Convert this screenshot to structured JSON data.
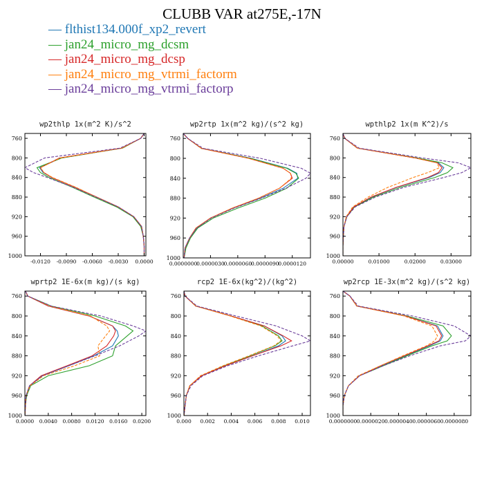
{
  "title": "CLUBB VAR at275E,-17N",
  "legend": [
    {
      "label": "flthist134.000f_xp2_revert",
      "color": "#1f77b4",
      "dash": "solid"
    },
    {
      "label": "jan24_micro_mg_dcsm",
      "color": "#2ca02c",
      "dash": "solid"
    },
    {
      "label": "jan24_micro_mg_dcsp",
      "color": "#d62728",
      "dash": "solid"
    },
    {
      "label": "jan24_micro_mg_vtrmi_factorm",
      "color": "#ff7f0e",
      "dash": "dashed"
    },
    {
      "label": "jan24_micro_mg_vtrmi_factorp",
      "color": "#6a3d9a",
      "dash": "dashed"
    }
  ],
  "legend_marker": "—",
  "chart_data": [
    {
      "type": "line",
      "title": "wp2thlp  1x(m^2 K)/s^2",
      "xlim": [
        -0.0138,
        0.0002
      ],
      "ylim": [
        1000,
        750
      ],
      "xticks": [
        -0.012,
        -0.009,
        -0.006,
        -0.003,
        0.0
      ],
      "xtick_labels": [
        "-0.0120",
        "-0.0090",
        "-0.0060",
        "-0.0030",
        "0.0000"
      ],
      "yticks": [
        760,
        800,
        840,
        880,
        920,
        960,
        1000
      ],
      "y": [
        750,
        760,
        780,
        800,
        820,
        830,
        840,
        860,
        880,
        900,
        920,
        940,
        960,
        980,
        1000
      ],
      "series": [
        {
          "name": "flthist134.000f_xp2_revert",
          "values": [
            0.0,
            -0.0004,
            -0.0026,
            -0.0096,
            -0.0121,
            -0.0117,
            -0.0107,
            -0.008,
            -0.0055,
            -0.003,
            -0.0012,
            -0.0003,
            -0.0001,
            0.0,
            0.0
          ]
        },
        {
          "name": "jan24_micro_mg_dcsm",
          "values": [
            0.0,
            -0.0004,
            -0.0025,
            -0.0095,
            -0.0124,
            -0.012,
            -0.011,
            -0.0083,
            -0.0058,
            -0.0032,
            -0.0013,
            -0.0004,
            -0.0001,
            0.0,
            0.0
          ]
        },
        {
          "name": "jan24_micro_mg_dcsp",
          "values": [
            0.0,
            -0.0004,
            -0.0026,
            -0.0098,
            -0.012,
            -0.0116,
            -0.0107,
            -0.008,
            -0.0055,
            -0.003,
            -0.0012,
            -0.0003,
            -0.0001,
            0.0,
            0.0
          ]
        },
        {
          "name": "jan24_micro_mg_vtrmi_factorm",
          "values": [
            0.0,
            -0.0004,
            -0.0026,
            -0.0097,
            -0.012,
            -0.0116,
            -0.0106,
            -0.0079,
            -0.0055,
            -0.003,
            -0.0012,
            -0.0003,
            -0.0001,
            0.0,
            0.0
          ]
        },
        {
          "name": "jan24_micro_mg_vtrmi_factorp",
          "values": [
            0.0,
            -0.0004,
            -0.0028,
            -0.0115,
            -0.0138,
            -0.0128,
            -0.0112,
            -0.0082,
            -0.0056,
            -0.003,
            -0.0012,
            -0.0003,
            -0.0001,
            0.0,
            0.0
          ]
        }
      ]
    },
    {
      "type": "line",
      "title": "wp2rtp  1x(m^2 kg)/(s^2 kg)",
      "xlim": [
        0.0,
        1.4e-05
      ],
      "ylim": [
        1000,
        750
      ],
      "xticks": [
        0.0,
        3e-06,
        6e-06,
        9e-06,
        1.2e-05
      ],
      "xtick_labels": [
        "0.0000000",
        "0.0000030",
        "0.0000060",
        "0.0000090",
        "0.0000120"
      ],
      "yticks": [
        760,
        800,
        840,
        880,
        920,
        960,
        1000
      ],
      "y": [
        750,
        760,
        780,
        800,
        820,
        830,
        840,
        860,
        880,
        900,
        920,
        940,
        960,
        980,
        1000
      ],
      "series": [
        {
          "name": "flthist134.000f_xp2_revert",
          "values": [
            0.0,
            5e-07,
            2e-06,
            7.5e-06,
            1.15e-05,
            1.25e-05,
            1.26e-05,
            1.1e-05,
            8.5e-06,
            5.5e-06,
            3e-06,
            1.5e-06,
            7e-07,
            2e-07,
            1e-07
          ]
        },
        {
          "name": "jan24_micro_mg_dcsm",
          "values": [
            0.0,
            5e-07,
            2e-06,
            7.4e-06,
            1.14e-05,
            1.24e-05,
            1.27e-05,
            1.14e-05,
            9e-06,
            6e-06,
            3.3e-06,
            1.6e-06,
            8e-07,
            3e-07,
            1e-07
          ]
        },
        {
          "name": "jan24_micro_mg_dcsp",
          "values": [
            0.0,
            5e-07,
            2e-06,
            7.2e-06,
            1.1e-05,
            1.18e-05,
            1.2e-05,
            1.06e-05,
            8.3e-06,
            5.4e-06,
            3e-06,
            1.4e-06,
            7e-07,
            2e-07,
            1e-07
          ]
        },
        {
          "name": "jan24_micro_mg_vtrmi_factorm",
          "values": [
            0.0,
            5e-07,
            2e-06,
            7.2e-06,
            1.1e-05,
            1.18e-05,
            1.19e-05,
            1.06e-05,
            8.3e-06,
            5.4e-06,
            3e-06,
            1.4e-06,
            7e-07,
            2e-07,
            1e-07
          ]
        },
        {
          "name": "jan24_micro_mg_vtrmi_factorp",
          "values": [
            0.0,
            5e-07,
            2.2e-06,
            8.5e-06,
            1.3e-05,
            1.4e-05,
            1.35e-05,
            1.13e-05,
            8.6e-06,
            5.6e-06,
            3.1e-06,
            1.5e-06,
            7e-07,
            2e-07,
            1e-07
          ]
        }
      ]
    },
    {
      "type": "line",
      "title": "wpthlp2  1x(m K^2)/s",
      "xlim": [
        0.0,
        0.0355
      ],
      "ylim": [
        1000,
        750
      ],
      "xticks": [
        0.0,
        0.01,
        0.02,
        0.03
      ],
      "xtick_labels": [
        "0.00000",
        "0.01000",
        "0.02000",
        "0.03000"
      ],
      "yticks": [
        760,
        800,
        840,
        880,
        920,
        960,
        1000
      ],
      "y": [
        750,
        760,
        780,
        800,
        810,
        820,
        830,
        840,
        860,
        880,
        900,
        920,
        940,
        960,
        980,
        1000
      ],
      "series": [
        {
          "name": "flthist134.000f_xp2_revert",
          "values": [
            0.0,
            0.0005,
            0.004,
            0.02,
            0.0265,
            0.028,
            0.027,
            0.024,
            0.015,
            0.008,
            0.003,
            0.001,
            0.0003,
            0.0001,
            0.0,
            0.0
          ]
        },
        {
          "name": "jan24_micro_mg_dcsm",
          "values": [
            0.0,
            0.0005,
            0.004,
            0.0205,
            0.0275,
            0.0305,
            0.029,
            0.0255,
            0.016,
            0.0085,
            0.0032,
            0.0011,
            0.0003,
            0.0001,
            0.0,
            0.0
          ]
        },
        {
          "name": "jan24_micro_mg_dcsp",
          "values": [
            0.0,
            0.0005,
            0.004,
            0.02,
            0.0262,
            0.0275,
            0.0265,
            0.0235,
            0.0148,
            0.0078,
            0.003,
            0.001,
            0.0003,
            0.0001,
            0.0,
            0.0
          ]
        },
        {
          "name": "jan24_micro_mg_vtrmi_factorm",
          "values": [
            0.0,
            0.0005,
            0.004,
            0.02,
            0.026,
            0.0268,
            0.0235,
            0.0195,
            0.0125,
            0.007,
            0.0027,
            0.0009,
            0.0003,
            0.0001,
            0.0,
            0.0
          ]
        },
        {
          "name": "jan24_micro_mg_vtrmi_factorp",
          "values": [
            0.0,
            0.0005,
            0.0045,
            0.022,
            0.032,
            0.0355,
            0.033,
            0.028,
            0.017,
            0.009,
            0.0034,
            0.0011,
            0.0003,
            0.0001,
            0.0,
            0.0
          ]
        }
      ]
    },
    {
      "type": "line",
      "title": "wprtp2  1E-6x(m kg)/(s kg)",
      "xlim": [
        0.0,
        0.0207
      ],
      "ylim": [
        1000,
        750
      ],
      "xticks": [
        0.0,
        0.004,
        0.008,
        0.012,
        0.016,
        0.02
      ],
      "xtick_labels": [
        "0.0000",
        "0.0040",
        "0.0080",
        "0.0120",
        "0.0160",
        "0.0200"
      ],
      "yticks": [
        760,
        800,
        840,
        880,
        920,
        960,
        1000
      ],
      "y": [
        750,
        760,
        780,
        800,
        820,
        830,
        840,
        860,
        880,
        900,
        920,
        940,
        960,
        980,
        1000
      ],
      "series": [
        {
          "name": "flthist134.000f_xp2_revert",
          "values": [
            0.0001,
            0.0005,
            0.004,
            0.011,
            0.015,
            0.0158,
            0.016,
            0.015,
            0.0118,
            0.0075,
            0.003,
            0.0008,
            0.0002,
            0.0001,
            0.0
          ]
        },
        {
          "name": "jan24_micro_mg_dcsm",
          "values": [
            0.0001,
            0.0005,
            0.0045,
            0.012,
            0.0172,
            0.0185,
            0.0175,
            0.0155,
            0.015,
            0.011,
            0.004,
            0.001,
            0.0003,
            0.0001,
            0.0
          ]
        },
        {
          "name": "jan24_micro_mg_dcsp",
          "values": [
            0.0001,
            0.0005,
            0.004,
            0.011,
            0.015,
            0.0155,
            0.0152,
            0.014,
            0.0115,
            0.0072,
            0.0028,
            0.0008,
            0.0002,
            0.0001,
            0.0
          ]
        },
        {
          "name": "jan24_micro_mg_vtrmi_factorm",
          "values": [
            0.0001,
            0.0005,
            0.0042,
            0.0112,
            0.014,
            0.0145,
            0.0138,
            0.0125,
            0.0128,
            0.0085,
            0.0032,
            0.0009,
            0.0002,
            0.0001,
            0.0
          ]
        },
        {
          "name": "jan24_micro_mg_vtrmi_factorp",
          "values": [
            0.0001,
            0.0005,
            0.0045,
            0.013,
            0.0185,
            0.0207,
            0.0195,
            0.0162,
            0.012,
            0.0075,
            0.003,
            0.0008,
            0.0002,
            0.0001,
            0.0
          ]
        }
      ]
    },
    {
      "type": "line",
      "title": "rcp2  1E-6x(kg^2)/(kg^2)",
      "xlim": [
        0.0,
        0.0107
      ],
      "ylim": [
        1000,
        750
      ],
      "xticks": [
        0.0,
        0.002,
        0.004,
        0.006,
        0.008,
        0.01
      ],
      "xtick_labels": [
        "0.000",
        "0.002",
        "0.004",
        "0.006",
        "0.008",
        "0.010"
      ],
      "yticks": [
        760,
        800,
        840,
        880,
        920,
        960,
        1000
      ],
      "y": [
        750,
        760,
        780,
        800,
        820,
        840,
        850,
        860,
        880,
        900,
        920,
        940,
        960,
        980,
        1000
      ],
      "series": [
        {
          "name": "flthist134.000f_xp2_revert",
          "values": [
            0.0,
            0.0001,
            0.001,
            0.004,
            0.0068,
            0.0083,
            0.0086,
            0.008,
            0.0058,
            0.0035,
            0.0015,
            0.0005,
            0.0002,
            0.0001,
            0.0
          ]
        },
        {
          "name": "jan24_micro_mg_dcsm",
          "values": [
            0.0,
            0.0001,
            0.001,
            0.004,
            0.0066,
            0.008,
            0.0083,
            0.0077,
            0.0056,
            0.0034,
            0.0015,
            0.0005,
            0.0002,
            0.0001,
            0.0
          ]
        },
        {
          "name": "jan24_micro_mg_dcsp",
          "values": [
            0.0,
            0.0001,
            0.001,
            0.004,
            0.0068,
            0.0084,
            0.0091,
            0.0082,
            0.0058,
            0.0035,
            0.0015,
            0.0005,
            0.0002,
            0.0001,
            0.0
          ]
        },
        {
          "name": "jan24_micro_mg_vtrmi_factorm",
          "values": [
            0.0,
            0.0001,
            0.001,
            0.0039,
            0.0065,
            0.0079,
            0.0082,
            0.0076,
            0.0055,
            0.0033,
            0.0014,
            0.0005,
            0.0002,
            0.0001,
            0.0
          ]
        },
        {
          "name": "jan24_micro_mg_vtrmi_factorp",
          "values": [
            0.0,
            0.0001,
            0.0011,
            0.0044,
            0.0078,
            0.01,
            0.0107,
            0.0092,
            0.0063,
            0.0037,
            0.0016,
            0.0006,
            0.0002,
            0.0001,
            0.0
          ]
        }
      ]
    },
    {
      "type": "line",
      "title": "wp2rcp  1E-3x(m^2 kg)/(s^2 kg)",
      "xlim": [
        0.0,
        9.2e-06
      ],
      "ylim": [
        1000,
        750
      ],
      "xticks": [
        0.0,
        2e-06,
        4e-06,
        6e-06,
        8e-06
      ],
      "xtick_labels": [
        "0.0000000",
        "0.0000020",
        "0.0000040",
        "0.0000060",
        "0.0000080"
      ],
      "yticks": [
        760,
        800,
        840,
        880,
        920,
        960,
        1000
      ],
      "y": [
        750,
        760,
        780,
        800,
        820,
        840,
        850,
        860,
        880,
        900,
        920,
        940,
        960,
        980,
        1000
      ],
      "series": [
        {
          "name": "flthist134.000f_xp2_revert",
          "values": [
            0.0,
            5e-07,
            1e-06,
            4.5e-06,
            6.8e-06,
            7.2e-06,
            7e-06,
            6.2e-06,
            4.5e-06,
            2.8e-06,
            1.2e-06,
            4e-07,
            1e-07,
            0.0,
            0.0
          ]
        },
        {
          "name": "jan24_micro_mg_dcsm",
          "values": [
            0.0,
            5e-07,
            1e-06,
            4.6e-06,
            7.2e-06,
            7.8e-06,
            7.5e-06,
            6.4e-06,
            4.6e-06,
            2.9e-06,
            1.2e-06,
            4e-07,
            1e-07,
            0.0,
            0.0
          ]
        },
        {
          "name": "jan24_micro_mg_dcsp",
          "values": [
            0.0,
            5e-07,
            1e-06,
            4.5e-06,
            6.7e-06,
            7.1e-06,
            6.9e-06,
            6.1e-06,
            4.4e-06,
            2.7e-06,
            1.2e-06,
            4e-07,
            1e-07,
            0.0,
            0.0
          ]
        },
        {
          "name": "jan24_micro_mg_vtrmi_factorm",
          "values": [
            0.0,
            5e-07,
            1e-06,
            4.4e-06,
            6.4e-06,
            6.8e-06,
            6.6e-06,
            6e-06,
            4.3e-06,
            2.7e-06,
            1.1e-06,
            4e-07,
            1e-07,
            0.0,
            0.0
          ]
        },
        {
          "name": "jan24_micro_mg_vtrmi_factorp",
          "values": [
            0.0,
            5e-07,
            1.1e-06,
            5e-06,
            8e-06,
            9.2e-06,
            8.8e-06,
            7e-06,
            4.8e-06,
            2.9e-06,
            1.2e-06,
            4e-07,
            1e-07,
            0.0,
            0.0
          ]
        }
      ]
    }
  ]
}
